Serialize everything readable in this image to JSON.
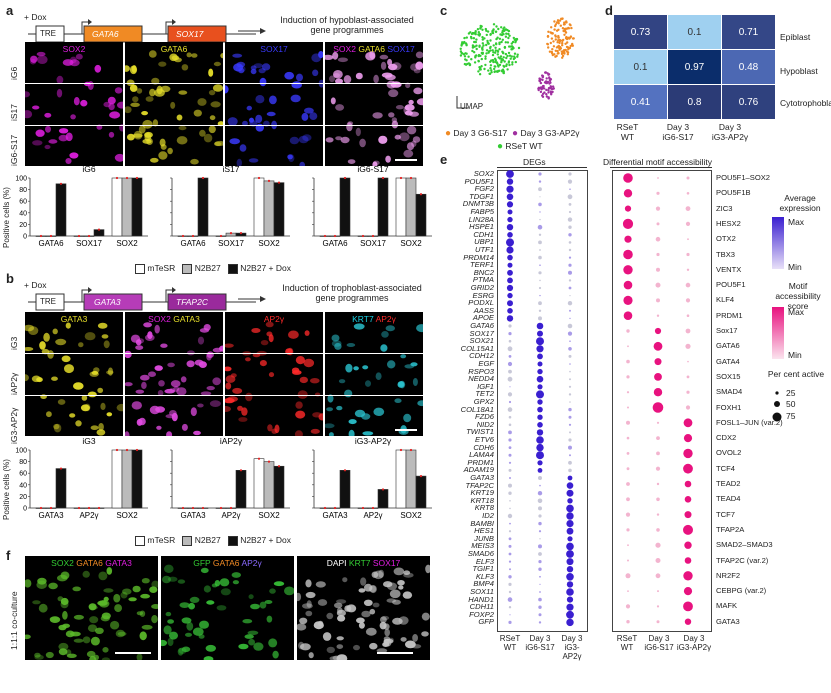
{
  "a": {
    "label": "a",
    "dox": "+ Dox",
    "tre": "TRE",
    "gene1": "GATA6",
    "gene2": "SOX17",
    "induction": "Induction of hypoblast-associated gene programmes",
    "cols": [
      "SOX2",
      "GATA6",
      "SOX17"
    ],
    "merge": {
      "sox2": "SOX2",
      "gata6": "GATA6",
      "sox17": "SOX17"
    },
    "rows": [
      "iG6",
      "iS17",
      "iG6-S17"
    ],
    "charts": [
      {
        "title": "iG6",
        "categories": [
          "GATA6",
          "SOX17",
          "SOX2"
        ],
        "mTeSR": [
          0,
          0,
          100
        ],
        "N2B27": [
          0,
          0,
          100
        ],
        "Dox": [
          90,
          11,
          100
        ]
      },
      {
        "title": "iS17",
        "categories": [
          "GATA6",
          "SOX17",
          "SOX2"
        ],
        "mTeSR": [
          0,
          0,
          100
        ],
        "N2B27": [
          0,
          5,
          95
        ],
        "Dox": [
          100,
          5,
          92
        ]
      },
      {
        "title": "iG6-S17",
        "categories": [
          "GATA6",
          "SOX17",
          "SOX2"
        ],
        "mTeSR": [
          0,
          0,
          100
        ],
        "N2B27": [
          0,
          0,
          100
        ],
        "Dox": [
          100,
          100,
          72
        ]
      }
    ],
    "ylabel": "Positive cells (%)",
    "yticks": [
      "0",
      "20",
      "40",
      "60",
      "80",
      "100"
    ],
    "legend": [
      "mTeSR",
      "N2B27",
      "N2B27 + Dox"
    ]
  },
  "b": {
    "label": "b",
    "dox": "+ Dox",
    "tre": "TRE",
    "gene1": "GATA3",
    "gene2": "TFAP2C",
    "induction": "Induction of trophoblast-associated gene programmes",
    "cols": {
      "c1": "GATA3",
      "c2a": "SOX2",
      "c2b": "GATA3",
      "c3": "AP2γ",
      "c4a": "KRT7",
      "c4b": "AP2γ"
    },
    "rows": [
      "iG3",
      "iAP2γ",
      "iG3-AP2γ"
    ],
    "charts": [
      {
        "title": "iG3",
        "categories": [
          "GATA3",
          "AP2γ",
          "SOX2"
        ],
        "mTeSR": [
          0,
          0,
          100
        ],
        "N2B27": [
          0,
          0,
          100
        ],
        "Dox": [
          68,
          0,
          100
        ]
      },
      {
        "title": "iAP2γ",
        "categories": [
          "GATA3",
          "AP2γ",
          "SOX2"
        ],
        "mTeSR": [
          0,
          0,
          85
        ],
        "N2B27": [
          0,
          0,
          80
        ],
        "Dox": [
          0,
          65,
          72
        ]
      },
      {
        "title": "iG3-AP2γ",
        "categories": [
          "GATA3",
          "AP2γ",
          "SOX2"
        ],
        "mTeSR": [
          0,
          0,
          100
        ],
        "N2B27": [
          0,
          0,
          100
        ],
        "Dox": [
          65,
          32,
          55
        ]
      }
    ],
    "ylabel": "Positive cells (%)",
    "yticks": [
      "0",
      "20",
      "40",
      "60",
      "80",
      "100"
    ],
    "legend": [
      "mTeSR",
      "N2B27",
      "N2B27 + Dox"
    ]
  },
  "c": {
    "label": "c",
    "umap": "UMAP",
    "legend": [
      "Day 3 G6-S17",
      "Day 3 G3-AP2γ",
      "RSeT WT"
    ]
  },
  "d": {
    "label": "d",
    "rows": [
      "Epiblast",
      "Hypoblast",
      "Cytotrophoblast"
    ],
    "cols": [
      "RSeT WT",
      "Day 3 iG6-S17",
      "Day 3 iG3-AP2γ"
    ],
    "values": [
      [
        "0.73",
        "0.1",
        "0.71"
      ],
      [
        "0.1",
        "0.97",
        "0.48"
      ],
      [
        "0.41",
        "0.8",
        "0.76"
      ]
    ]
  },
  "e": {
    "label": "e",
    "degs_title": "DEGs",
    "motif_title": "Differential motif accessibility",
    "genes": [
      "SOX2",
      "POU5F1",
      "FGF2",
      "TDGF1",
      "DNMT3B",
      "FABP5",
      "LIN28A",
      "HSPE1",
      "CDH1",
      "UBP1",
      "UTF1",
      "PRDM14",
      "TERF1",
      "BNC2",
      "PTMA",
      "GRID2",
      "ESRG",
      "PODXL",
      "AASS",
      "APOE",
      "GATA6",
      "SOX17",
      "SOX21",
      "COL15A1",
      "CDH12",
      "EGF",
      "RSPO3",
      "NEDD4",
      "IGF1",
      "TET2",
      "GPX2",
      "COL18A1",
      "FZD6",
      "NID2",
      "TWIST1",
      "ETV6",
      "CDH6",
      "LAMA4",
      "PRDM1",
      "ADAM19",
      "GATA3",
      "TFAP2C",
      "KRT19",
      "KRT18",
      "KRT8",
      "ID2",
      "BAMBI",
      "HES1",
      "JUNB",
      "MEIS3",
      "SMAD6",
      "ELF3",
      "TGIF1",
      "KLF3",
      "BMP4",
      "SOX11",
      "HAND1",
      "CDH11",
      "FOXP2",
      "GFP"
    ],
    "motifs": [
      "POU5F1–SOX2",
      "POU5F1B",
      "ZIC3",
      "HESX2",
      "OTX2",
      "TBX3",
      "VENTX",
      "POU5F1",
      "KLF4",
      "PRDM1",
      "Sox17",
      "GATA6",
      "GATA4",
      "SOX15",
      "SMAD4",
      "FOXH1",
      "FOSL1–JUN (var.2)",
      "CDX2",
      "OVOL2",
      "TCF4",
      "TEAD2",
      "TEAD4",
      "TCF7",
      "TFAP2A",
      "SMAD2–SMAD3",
      "TFAP2C (var.2)",
      "NR2F2",
      "CEBPG (var.2)",
      "MAFK",
      "GATA3"
    ],
    "xlabels": [
      "RSeT WT",
      "Day 3 iG6-S17",
      "Day 3 iG3-AP2γ"
    ],
    "legend": {
      "avg_title": "Average expression",
      "max": "Max",
      "min": "Min",
      "motif_title": "Motif accessibility score",
      "motif_max": "Max",
      "motif_min": "Min",
      "pct_title": "Per cent active",
      "pct_values": [
        "25",
        "50",
        "75"
      ]
    }
  },
  "f": {
    "label": "f",
    "row": "1:1:1 co-culture",
    "p1": {
      "a": "SOX2",
      "b": "GATA6",
      "c": "GATA3"
    },
    "p2": {
      "a": "GFP",
      "b": "GATA6",
      "c": "AP2γ"
    },
    "p3": {
      "a": "DAPI",
      "b": "KRT7",
      "c": "SOX17"
    }
  },
  "colors": {
    "magenta": "#e21ee2",
    "yellow": "#e8e02a",
    "blue": "#3a3aff",
    "cyan": "#19d3e6",
    "red": "#ff2a2a",
    "orange": "#f08a24",
    "green": "#33cc33",
    "purple": "#a030a0",
    "dot_blue": "#3a1fd0",
    "dot_pink": "#e8127f",
    "heat_dark": "#0b2d6b"
  }
}
